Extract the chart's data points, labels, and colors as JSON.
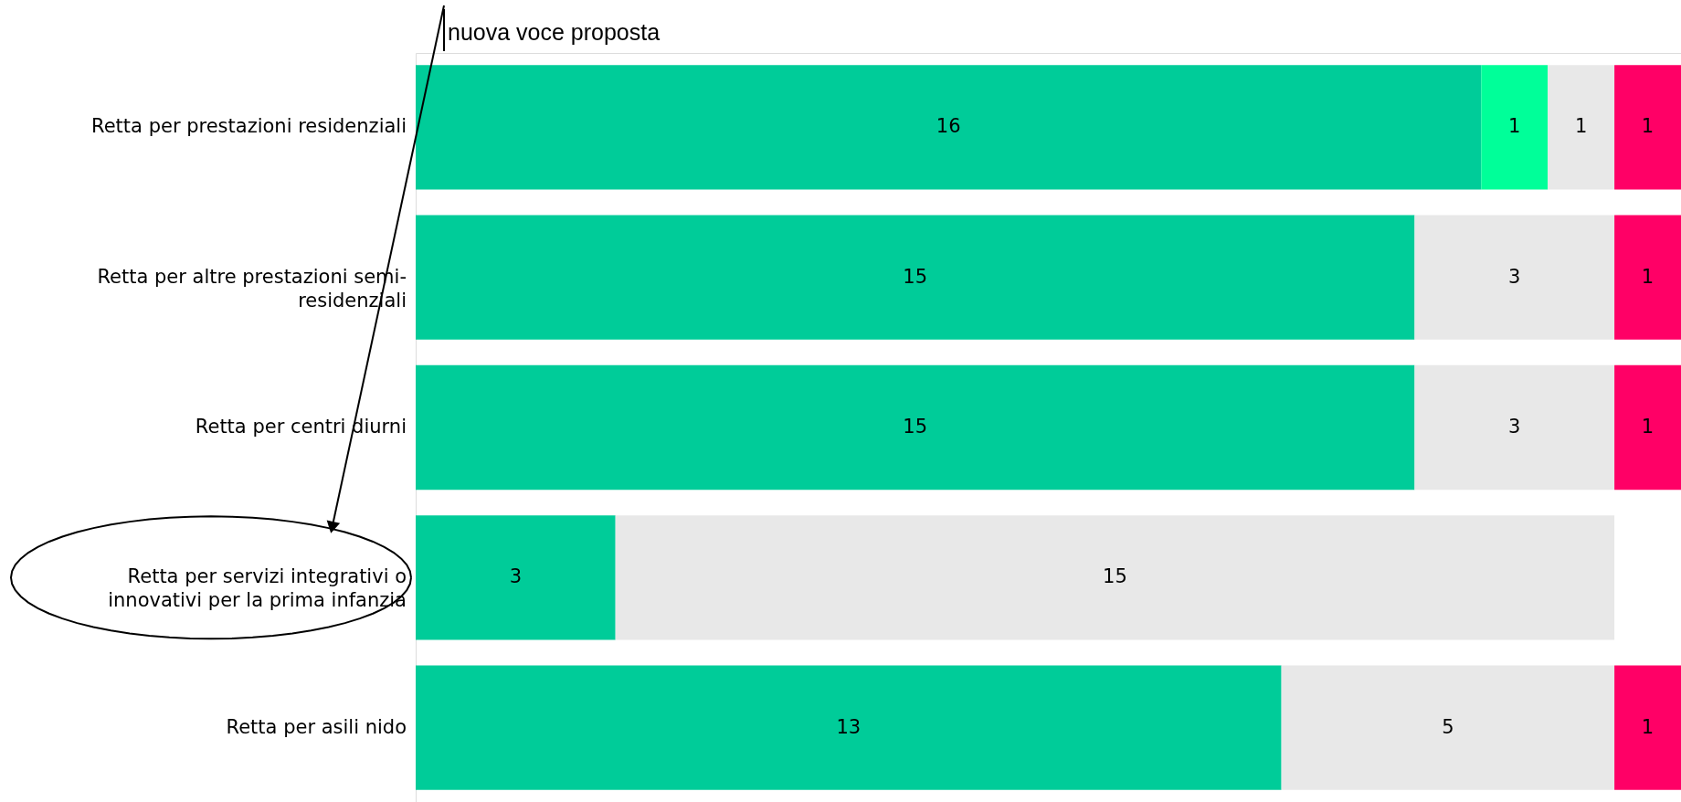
{
  "chart_data": {
    "type": "bar",
    "orientation": "horizontal",
    "stacked": true,
    "data_labels": true,
    "categories": [
      "Retta per prestazioni residenziali",
      "Retta per altre prestazioni semi-residenziali",
      "Retta per centri diurni",
      "Retta per servizi integrativi o innovativi per la prima infanzia",
      "Retta per asili nido"
    ],
    "series": [
      {
        "color": "#00cc99",
        "values": [
          16,
          15,
          15,
          3,
          13
        ]
      },
      {
        "color": "#00ff99",
        "values": [
          1,
          null,
          null,
          null,
          null
        ]
      },
      {
        "color": "#e8e8e8",
        "values": [
          1,
          3,
          3,
          15,
          5
        ]
      },
      {
        "color": "#ff0066",
        "values": [
          1,
          1,
          1,
          null,
          1
        ]
      }
    ],
    "annotations": [
      "nuova voce proposta"
    ]
  }
}
